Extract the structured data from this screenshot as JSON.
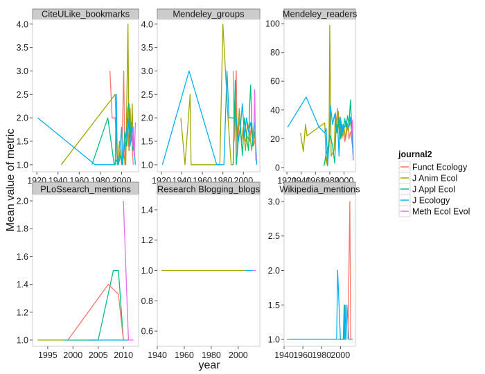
{
  "chart_data": {
    "type": "line",
    "xlabel": "year",
    "ylabel": "Mean value of metric",
    "legend": {
      "title": "journal2",
      "placement": "right",
      "entries": [
        {
          "name": "Funct Ecology",
          "color": "#F8766D"
        },
        {
          "name": "J Anim Ecol",
          "color": "#A3A500"
        },
        {
          "name": "J Appl Ecol",
          "color": "#00BF7D"
        },
        {
          "name": "J Ecology",
          "color": "#00B0F6"
        },
        {
          "name": "Meth Ecol Evol",
          "color": "#E76BF3"
        }
      ]
    },
    "panels": [
      {
        "title": "CiteULike_bookmarks",
        "xlim": [
          1916,
          2016
        ],
        "ylim": [
          0.85,
          4.1
        ],
        "xticks": [
          1920,
          1940,
          1960,
          1980,
          2000
        ],
        "yticks": [
          1.0,
          1.5,
          2.0,
          2.5,
          3.0,
          3.5,
          4.0
        ],
        "ytick_labels": [
          "1.0",
          "1.5",
          "2.0",
          "2.5",
          "3.0",
          "3.5",
          "4.0"
        ],
        "series": [
          {
            "name": "Funct Ecology",
            "x": [
              1989,
              1991,
              1994,
              1996,
              1998,
              2000,
              2002,
              2003,
              2005,
              2007,
              2009,
              2011
            ],
            "y": [
              3.0,
              2.0,
              2.0,
              1.0,
              1.5,
              1.0,
              3.0,
              1.0,
              2.0,
              1.3,
              1.8,
              1.0
            ]
          },
          {
            "name": "J Anim Ecol",
            "x": [
              1943,
              1994,
              1996,
              1998,
              2000,
              2002,
              2004,
              2006,
              2007,
              2008,
              2009,
              2010,
              2011,
              2012
            ],
            "y": [
              1.0,
              2.5,
              1.0,
              1.5,
              1.0,
              1.2,
              1.0,
              4.0,
              1.3,
              2.2,
              1.5,
              2.3,
              1.4,
              1.2
            ]
          },
          {
            "name": "J Appl Ecol",
            "x": [
              1972,
              1987,
              1993,
              1995,
              1997,
              1999,
              2001,
              2003,
              2005,
              2006,
              2007,
              2008,
              2009,
              2010,
              2011
            ],
            "y": [
              1.0,
              2.0,
              1.0,
              1.1,
              1.0,
              1.2,
              1.0,
              1.7,
              1.4,
              2.2,
              2.3,
              1.6,
              1.9,
              1.4,
              1.3
            ]
          },
          {
            "name": "J Ecology",
            "x": [
              1921,
              1975,
              1994,
              1995,
              1996,
              1998,
              2000,
              2001,
              2002,
              2004,
              2006,
              2008,
              2010,
              2012,
              2013
            ],
            "y": [
              2.0,
              1.0,
              1.0,
              2.5,
              1.0,
              1.2,
              1.8,
              1.0,
              1.3,
              1.5,
              2.0,
              1.4,
              1.8,
              1.3,
              1.0
            ]
          },
          {
            "name": "Meth Ecol Evol",
            "x": [
              2010,
              2011,
              2012,
              2013
            ],
            "y": [
              1.4,
              1.8,
              1.2,
              1.9
            ]
          }
        ]
      },
      {
        "title": "Mendeley_groups",
        "xlim": [
          1916,
          2016
        ],
        "ylim": [
          0.85,
          4.1
        ],
        "xticks": [
          1920,
          1940,
          1960,
          1980,
          2000
        ],
        "yticks": [
          1.0,
          1.5,
          2.0,
          2.5,
          3.0,
          3.5,
          4.0
        ],
        "ytick_labels": [
          "1.0",
          "1.5",
          "2.0",
          "2.5",
          "3.0",
          "3.5",
          "4.0"
        ],
        "series": [
          {
            "name": "Funct Ecology",
            "x": [
              1990,
              1991,
              1993,
              1994,
              1996,
              1998,
              2000,
              2002,
              2004,
              2006,
              2008,
              2010,
              2012
            ],
            "y": [
              3.0,
              1.5,
              3.0,
              1.2,
              2.0,
              1.5,
              1.8,
              1.5,
              1.6,
              1.5,
              1.9,
              1.4,
              1.6
            ]
          },
          {
            "name": "J Anim Ecol",
            "x": [
              1939,
              1943,
              1948,
              1949,
              1977,
              1980,
              1985,
              1988,
              1990,
              1992,
              1994,
              1996,
              1998,
              2000,
              2002,
              2004,
              2006,
              2008,
              2010,
              2012
            ],
            "y": [
              2.0,
              1.0,
              2.5,
              1.0,
              1.0,
              4.0,
              2.0,
              1.0,
              1.0,
              2.5,
              1.5,
              2.2,
              1.5,
              1.8,
              1.3,
              1.9,
              1.7,
              1.3,
              1.8,
              1.4
            ]
          },
          {
            "name": "J Appl Ecol",
            "x": [
              1990,
              1992,
              1993,
              1995,
              1997,
              1999,
              2001,
              2003,
              2005,
              2006,
              2007,
              2009,
              2011
            ],
            "y": [
              1.0,
              2.8,
              1.0,
              1.5,
              1.8,
              1.2,
              2.0,
              1.6,
              1.3,
              2.2,
              2.7,
              1.4,
              1.7
            ]
          },
          {
            "name": "J Ecology",
            "x": [
              1921,
              1947,
              1974,
              1981,
              1984,
              1986,
              1993,
              1995,
              1997,
              1999,
              2001,
              2003,
              2005,
              2007,
              2009,
              2011,
              2013
            ],
            "y": [
              1.0,
              3.0,
              1.0,
              1.0,
              3.0,
              2.0,
              2.0,
              1.5,
              1.8,
              2.3,
              1.6,
              2.0,
              1.7,
              1.9,
              1.5,
              1.9,
              1.0
            ]
          },
          {
            "name": "Meth Ecol Evol",
            "x": [
              2010,
              2011,
              2012,
              2013
            ],
            "y": [
              1.5,
              2.6,
              1.1,
              1.2
            ]
          }
        ]
      },
      {
        "title": "Mendeley_readers",
        "xlim": [
          1916,
          2016
        ],
        "ylim": [
          -3,
          103
        ],
        "xticks": [
          1920,
          1940,
          1960,
          1980,
          2000
        ],
        "yticks": [
          0,
          20,
          40,
          60,
          80,
          100
        ],
        "ytick_labels": [
          "0",
          "20",
          "40",
          "60",
          "80",
          "100"
        ],
        "series": [
          {
            "name": "Funct Ecology",
            "x": [
              1989,
              1991,
              1993,
              1995,
              1997,
              1999,
              2001,
              2003,
              2005,
              2007,
              2009,
              2011,
              2013
            ],
            "y": [
              30,
              41,
              28,
              35,
              20,
              25,
              18,
              22,
              30,
              20,
              25,
              18,
              10
            ]
          },
          {
            "name": "J Anim Ecol",
            "x": [
              1939,
              1943,
              1946,
              1948,
              1973,
              1975,
              1979,
              1980,
              1982,
              1986,
              1988,
              1990,
              1992,
              1994,
              1996,
              1998,
              2000,
              2002,
              2004,
              2006,
              2008,
              2010,
              2012
            ],
            "y": [
              24,
              11,
              30,
              22,
              31,
              2,
              20,
              99,
              8,
              12,
              38,
              24,
              39,
              18,
              32,
              22,
              28,
              20,
              30,
              25,
              32,
              28,
              20
            ]
          },
          {
            "name": "J Appl Ecol",
            "x": [
              1972,
              1975,
              1978,
              1981,
              1984,
              1987,
              1989,
              1991,
              1993,
              1995,
              1997,
              1999,
              2001,
              2003,
              2005,
              2007,
              2009,
              2011,
              2013
            ],
            "y": [
              1,
              10,
              15,
              22,
              15,
              3,
              30,
              25,
              35,
              20,
              30,
              25,
              34,
              28,
              36,
              30,
              47,
              26,
              5
            ]
          },
          {
            "name": "J Ecology",
            "x": [
              1921,
              1947,
              1965,
              1973,
              1975,
              1977,
              1979,
              1981,
              1984,
              1987,
              1989,
              1991,
              1993,
              1995,
              1997,
              1999,
              2001,
              2003,
              2005,
              2007,
              2009,
              2011,
              2013
            ],
            "y": [
              28,
              49,
              28,
              24,
              27,
              1,
              15,
              43,
              30,
              37,
              25,
              30,
              8,
              34,
              22,
              30,
              28,
              32,
              30,
              28,
              35,
              24,
              5
            ]
          },
          {
            "name": "Meth Ecol Evol",
            "x": [
              2011,
              2012,
              2013
            ],
            "y": [
              25,
              33,
              6
            ]
          }
        ]
      },
      {
        "title": "PLoSsearch_mentions",
        "xlim": [
          1992,
          2013
        ],
        "ylim": [
          0.955,
          2.045
        ],
        "xticks": [
          1995,
          2000,
          2005,
          2010
        ],
        "yticks": [
          1.0,
          1.2,
          1.4,
          1.6,
          1.8,
          2.0
        ],
        "ytick_labels": [
          "1.0",
          "1.2",
          "1.4",
          "1.6",
          "1.8",
          "2.0"
        ],
        "series": [
          {
            "name": "J Anim Ecol",
            "x": [
              1993,
              1998
            ],
            "y": [
              1.0,
              1.0
            ]
          },
          {
            "name": "J Appl Ecol",
            "x": [
              1998,
              2003,
              2005,
              2008,
              2009,
              2010
            ],
            "y": [
              1.0,
              1.0,
              1.0,
              1.5,
              1.5,
              1.0
            ]
          },
          {
            "name": "Funct Ecology",
            "x": [
              1999,
              2007,
              2009,
              2010
            ],
            "y": [
              1.0,
              1.4,
              1.33,
              1.0
            ]
          },
          {
            "name": "J Ecology",
            "x": [
              2003,
              2011
            ],
            "y": [
              1.0,
              1.0
            ]
          },
          {
            "name": "Meth Ecol Evol",
            "x": [
              2010,
              2011,
              2012
            ],
            "y": [
              2.0,
              1.0,
              1.0
            ]
          }
        ]
      },
      {
        "title": "Research Blogging_blogs",
        "xlim": [
          1940,
          2016
        ],
        "ylim": [
          0.5,
          1.5
        ],
        "xticks": [
          1940,
          1960,
          1980,
          2000
        ],
        "yticks": [
          0.6,
          0.8,
          1.0,
          1.2,
          1.4
        ],
        "ytick_labels": [
          "0.6",
          "0.8",
          "1.0",
          "1.2",
          "1.4"
        ],
        "series": [
          {
            "name": "J Anim Ecol",
            "x": [
              1943,
              2005
            ],
            "y": [
              1.0,
              1.0
            ]
          },
          {
            "name": "J Ecology",
            "x": [
              2005,
              2011
            ],
            "y": [
              1.0,
              1.0
            ]
          },
          {
            "name": "Meth Ecol Evol",
            "x": [
              2011,
              2013
            ],
            "y": [
              1.0,
              1.0
            ]
          }
        ]
      },
      {
        "title": "Wikipedia_mentions",
        "xlim": [
          1940,
          2016
        ],
        "ylim": [
          0.9,
          3.1
        ],
        "xticks": [
          1940,
          1960,
          1980,
          2000
        ],
        "yticks": [
          1.0,
          1.5,
          2.0,
          2.5,
          3.0
        ],
        "ytick_labels": [
          "1.0",
          "1.5",
          "2.0",
          "2.5",
          "3.0"
        ],
        "series": [
          {
            "name": "J Anim Ecol",
            "x": [
              1943,
              1947
            ],
            "y": [
              1.0,
              1.0
            ]
          },
          {
            "name": "J Appl Ecol",
            "x": [
              1997,
              2003,
              2004,
              2005,
              2006
            ],
            "y": [
              1.0,
              1.0,
              1.5,
              1.0,
              1.0
            ]
          },
          {
            "name": "J Ecology",
            "x": [
              1947,
              1996,
              1997,
              2000,
              2001,
              2004,
              2005,
              2006,
              2007,
              2009,
              2013
            ],
            "y": [
              1.0,
              1.0,
              2.0,
              1.0,
              1.0,
              1.0,
              1.5,
              1.0,
              1.5,
              1.0,
              1.0
            ]
          },
          {
            "name": "Funct Ecology",
            "x": [
              2008,
              2010,
              2011
            ],
            "y": [
              1.0,
              3.0,
              1.0
            ]
          }
        ]
      }
    ]
  }
}
